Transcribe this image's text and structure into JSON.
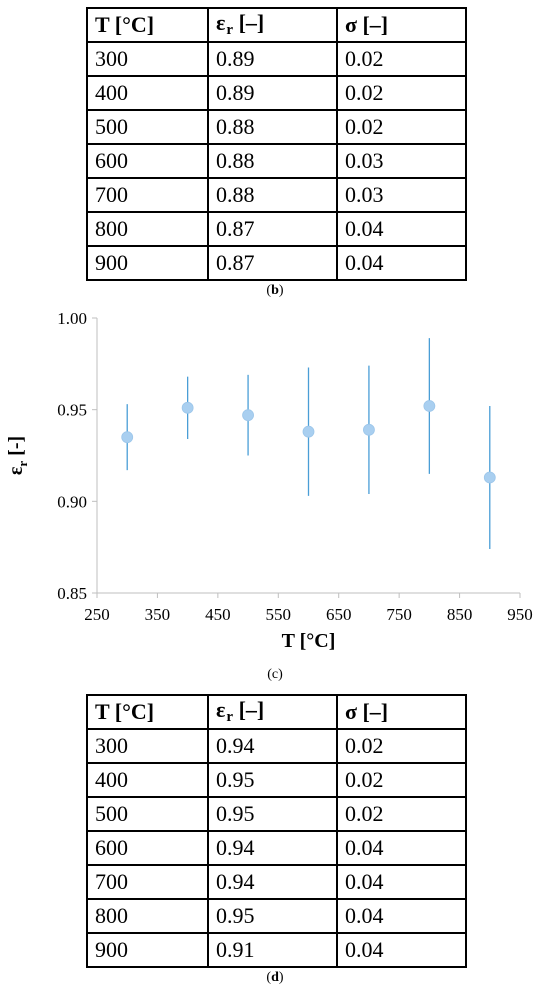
{
  "table_b": {
    "headers": [
      "T [°C]",
      "ε",
      "r",
      " [–]",
      "σ [–]"
    ],
    "rows": [
      [
        "300",
        "0.89",
        "0.02"
      ],
      [
        "400",
        "0.89",
        "0.02"
      ],
      [
        "500",
        "0.88",
        "0.02"
      ],
      [
        "600",
        "0.88",
        "0.03"
      ],
      [
        "700",
        "0.88",
        "0.03"
      ],
      [
        "800",
        "0.87",
        "0.04"
      ],
      [
        "900",
        "0.87",
        "0.04"
      ]
    ],
    "caption_open": "(",
    "caption_letter": "b",
    "caption_close": ")"
  },
  "table_d": {
    "headers": [
      "T [°C]",
      "ε",
      "r",
      " [–]",
      "σ [–]"
    ],
    "rows": [
      [
        "300",
        "0.94",
        "0.02"
      ],
      [
        "400",
        "0.95",
        "0.02"
      ],
      [
        "500",
        "0.95",
        "0.02"
      ],
      [
        "600",
        "0.94",
        "0.04"
      ],
      [
        "700",
        "0.94",
        "0.04"
      ],
      [
        "800",
        "0.95",
        "0.04"
      ],
      [
        "900",
        "0.91",
        "0.04"
      ]
    ],
    "caption_open": "(",
    "caption_letter": "d",
    "caption_close": ")"
  },
  "chart_caption": {
    "open": "(",
    "letter": "c",
    "close": ")"
  },
  "chart_data": {
    "type": "scatter",
    "x": [
      300,
      400,
      500,
      600,
      700,
      800,
      900
    ],
    "y": [
      0.935,
      0.951,
      0.947,
      0.938,
      0.939,
      0.952,
      0.913
    ],
    "y_err_low": [
      0.917,
      0.934,
      0.925,
      0.903,
      0.904,
      0.915,
      0.874
    ],
    "y_err_high": [
      0.953,
      0.968,
      0.969,
      0.973,
      0.974,
      0.989,
      0.952
    ],
    "xlabel": "T [°C]",
    "ylabel_main": "ε",
    "ylabel_sub": "r",
    "ylabel_tail": " [-]",
    "xlim": [
      250,
      950
    ],
    "ylim": [
      0.85,
      1.0
    ],
    "xticks": [
      "250",
      "350",
      "450",
      "550",
      "650",
      "750",
      "850",
      "950"
    ],
    "yticks": [
      "0.85",
      "0.90",
      "0.95",
      "1.00"
    ],
    "grid": false,
    "marker_color": "#a9cff0",
    "errorbar_color": "#4a9ed6",
    "axis_color": "#bfbfbf"
  }
}
